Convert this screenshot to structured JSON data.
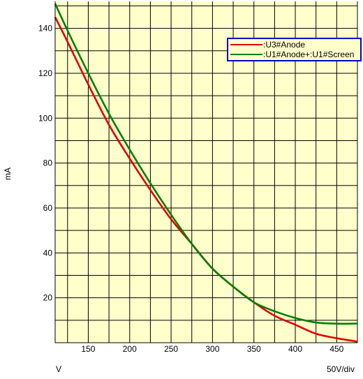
{
  "chart_data": {
    "type": "line",
    "ylabel": "mA",
    "xlabel": "V",
    "x_scale_note": "50V/div",
    "xlim": [
      110,
      475
    ],
    "ylim": [
      0,
      152
    ],
    "x_ticks": [
      150,
      200,
      250,
      300,
      350,
      400,
      450
    ],
    "y_ticks": [
      20,
      40,
      60,
      80,
      100,
      120,
      140
    ],
    "grid": true,
    "plot_background": "#ffffcc",
    "legend_position": "top-right",
    "legend_background": "#ffffcc",
    "legend_border": "#0000cc",
    "series": [
      {
        "name": ":U3#Anode",
        "color": "#e00000",
        "x": [
          110,
          125,
          150,
          175,
          200,
          225,
          250,
          275,
          300,
          325,
          350,
          375,
          400,
          425,
          450,
          475
        ],
        "y": [
          145,
          134,
          115,
          97,
          82,
          68,
          55,
          44,
          33,
          25,
          18,
          12,
          8,
          4,
          2,
          0.5
        ]
      },
      {
        "name": ":U1#Anode+:U1#Screen",
        "color": "#008000",
        "x": [
          110,
          125,
          150,
          175,
          200,
          225,
          250,
          275,
          300,
          325,
          350,
          375,
          400,
          425,
          450,
          475
        ],
        "y": [
          151,
          139,
          120,
          102,
          86,
          71,
          57,
          44,
          33,
          25,
          18,
          14,
          11,
          9,
          8.5,
          8.5
        ]
      }
    ]
  }
}
